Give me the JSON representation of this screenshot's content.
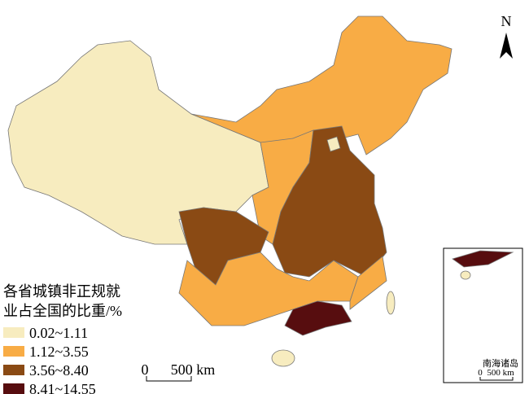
{
  "legend": {
    "title_lines": [
      "各省城镇非正规就",
      "业占全国的比重/%"
    ],
    "classes": [
      {
        "label": "0.02~1.11",
        "color": "#f7ecbf"
      },
      {
        "label": "1.12~3.55",
        "color": "#f8ac45"
      },
      {
        "label": "3.56~8.40",
        "color": "#8a4a14"
      },
      {
        "label": "8.41~14.55",
        "color": "#570d0f"
      }
    ]
  },
  "scale_bar": {
    "start": "0",
    "end": "500 km"
  },
  "north_arrow": "N",
  "inset": {
    "title": "南海诸岛",
    "scale_start": "0",
    "scale_end": "500 km"
  }
}
